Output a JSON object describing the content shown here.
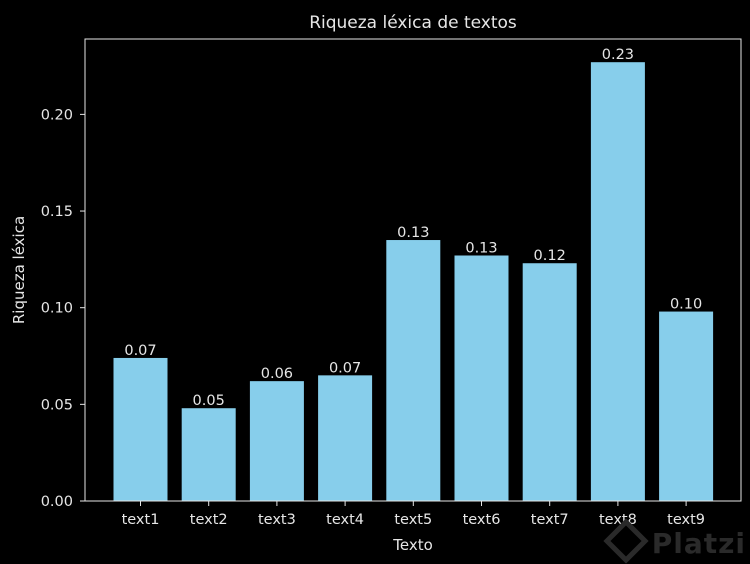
{
  "chart_data": {
    "type": "bar",
    "title": "Riqueza léxica de textos",
    "xlabel": "Texto",
    "ylabel": "Riqueza léxica",
    "categories": [
      "text1",
      "text2",
      "text3",
      "text4",
      "text5",
      "text6",
      "text7",
      "text8",
      "text9"
    ],
    "values": [
      0.074,
      0.048,
      0.062,
      0.065,
      0.135,
      0.127,
      0.123,
      0.227,
      0.098
    ],
    "data_labels": [
      "0.07",
      "0.05",
      "0.06",
      "0.07",
      "0.13",
      "0.13",
      "0.12",
      "0.23",
      "0.10"
    ],
    "ylim": [
      0,
      0.239
    ],
    "yticks": [
      0.0,
      0.05,
      0.1,
      0.15,
      0.2
    ],
    "ytick_labels": [
      "0.00",
      "0.05",
      "0.10",
      "0.15",
      "0.20"
    ],
    "grid": false,
    "colors": {
      "bar": "#87ceeb",
      "background": "#000000",
      "axes": "#e6e6e6",
      "text": "#e6e6e6"
    }
  },
  "watermark": {
    "text": "Platzi"
  }
}
